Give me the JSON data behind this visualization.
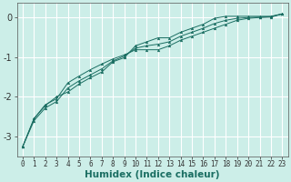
{
  "xlabel": "Humidex (Indice chaleur)",
  "ylabel": "",
  "background_color": "#cceee8",
  "grid_color": "#ffffff",
  "line_color": "#1a6e62",
  "xlim": [
    -0.5,
    23.5
  ],
  "ylim": [
    -3.5,
    0.35
  ],
  "yticks": [
    0,
    -1,
    -2,
    -3
  ],
  "xticks": [
    0,
    1,
    2,
    3,
    4,
    5,
    6,
    7,
    8,
    9,
    10,
    11,
    12,
    13,
    14,
    15,
    16,
    17,
    18,
    19,
    20,
    21,
    22,
    23
  ],
  "series": [
    [
      0,
      1,
      2,
      3,
      4,
      5,
      6,
      7,
      8,
      9,
      10,
      11,
      12,
      13,
      14,
      15,
      16,
      17,
      18,
      19,
      20,
      21,
      22,
      23
    ],
    [
      -3.25,
      -2.55,
      -2.2,
      -2.05,
      -1.65,
      -1.48,
      -1.32,
      -1.18,
      -1.05,
      -0.95,
      -0.82,
      -0.82,
      -0.82,
      -0.72,
      -0.58,
      -0.48,
      -0.38,
      -0.28,
      -0.18,
      -0.08,
      -0.03,
      -0.01,
      0.0,
      0.08
    ],
    [
      -3.25,
      -2.55,
      -2.22,
      -2.0,
      -1.88,
      -1.68,
      -1.52,
      -1.38,
      -1.12,
      -1.02,
      -0.72,
      -0.62,
      -0.52,
      -0.52,
      -0.38,
      -0.28,
      -0.18,
      -0.03,
      0.02,
      0.02,
      0.02,
      0.02,
      0.02,
      0.08
    ],
    [
      -3.25,
      -2.6,
      -2.28,
      -2.12,
      -1.78,
      -1.6,
      -1.45,
      -1.3,
      -1.1,
      -0.98,
      -0.78,
      -0.72,
      -0.68,
      -0.62,
      -0.48,
      -0.38,
      -0.28,
      -0.16,
      -0.08,
      -0.03,
      -0.01,
      0.0,
      0.01,
      0.08
    ]
  ],
  "xlabel_fontsize": 7.5,
  "xlabel_fontweight": "bold",
  "ytick_fontsize": 7,
  "xtick_fontsize": 5.5
}
